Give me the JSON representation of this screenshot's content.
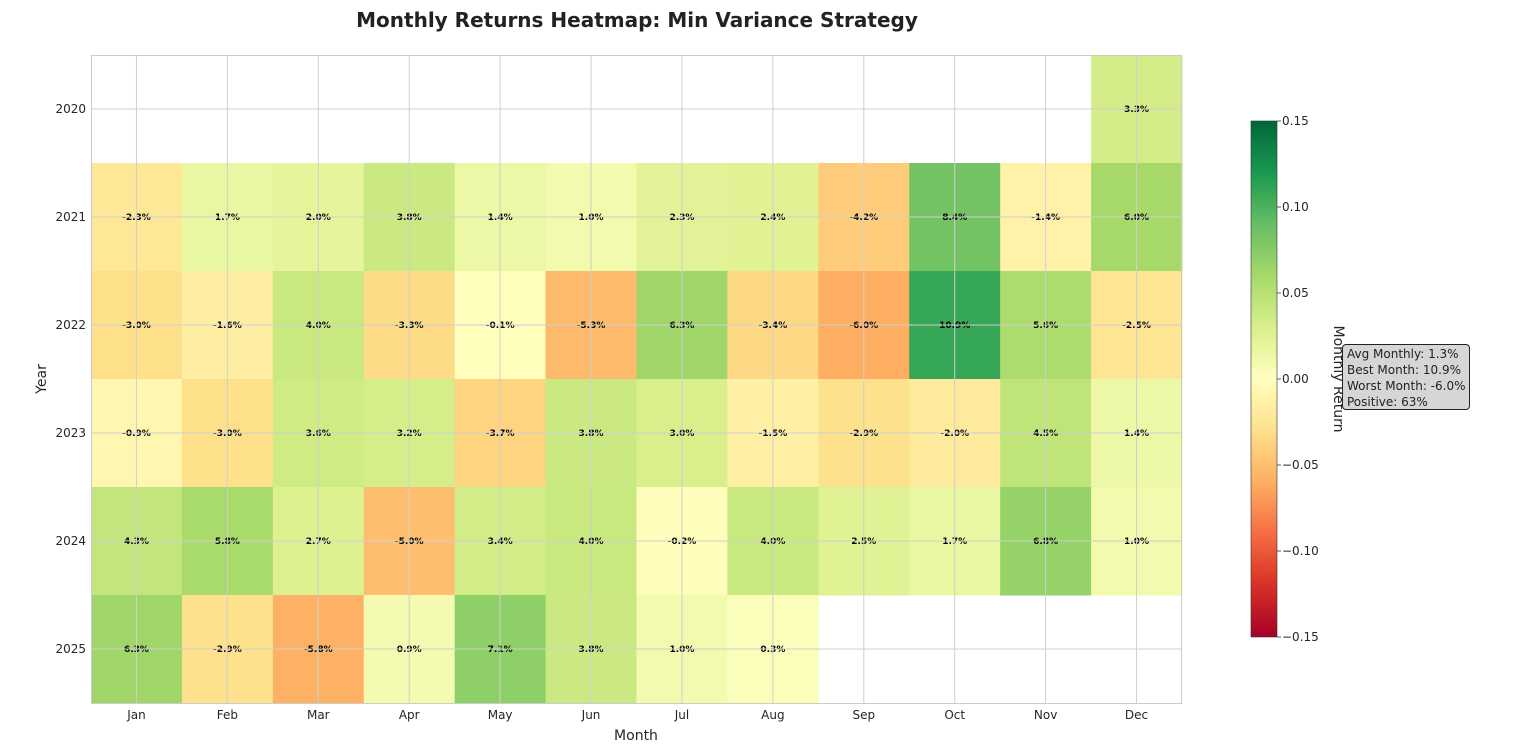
{
  "chart_data": {
    "type": "heatmap",
    "title": "Monthly Returns Heatmap: Min Variance Strategy",
    "xlabel": "Month",
    "ylabel": "Year",
    "x_categories": [
      "Jan",
      "Feb",
      "Mar",
      "Apr",
      "May",
      "Jun",
      "Jul",
      "Aug",
      "Sep",
      "Oct",
      "Nov",
      "Dec"
    ],
    "y_categories": [
      "2020",
      "2021",
      "2022",
      "2023",
      "2024",
      "2025"
    ],
    "values": [
      [
        null,
        null,
        null,
        null,
        null,
        null,
        null,
        null,
        null,
        null,
        null,
        0.033
      ],
      [
        -0.023,
        0.017,
        0.02,
        0.038,
        0.014,
        0.01,
        0.023,
        0.024,
        -0.042,
        0.084,
        -0.014,
        0.06
      ],
      [
        -0.03,
        -0.016,
        0.04,
        -0.033,
        -0.001,
        -0.053,
        0.063,
        -0.034,
        -0.06,
        0.109,
        0.056,
        -0.025
      ],
      [
        -0.009,
        -0.03,
        0.036,
        0.032,
        -0.037,
        0.038,
        0.03,
        -0.015,
        -0.029,
        -0.02,
        0.045,
        0.014
      ],
      [
        0.043,
        0.058,
        0.027,
        -0.05,
        0.034,
        0.04,
        -0.002,
        0.04,
        0.025,
        0.017,
        0.068,
        0.01
      ],
      [
        0.063,
        -0.029,
        -0.058,
        0.009,
        0.071,
        0.038,
        0.01,
        0.003,
        null,
        null,
        null,
        null
      ]
    ],
    "cell_labels": [
      [
        "",
        "",
        "",
        "",
        "",
        "",
        "",
        "",
        "",
        "",
        "",
        "3.3%"
      ],
      [
        "-2.3%",
        "1.7%",
        "2.0%",
        "3.8%",
        "1.4%",
        "1.0%",
        "2.3%",
        "2.4%",
        "-4.2%",
        "8.4%",
        "-1.4%",
        "6.0%"
      ],
      [
        "-3.0%",
        "-1.6%",
        "4.0%",
        "-3.3%",
        "-0.1%",
        "-5.3%",
        "6.3%",
        "-3.4%",
        "-6.0%",
        "10.9%",
        "5.6%",
        "-2.5%"
      ],
      [
        "-0.9%",
        "-3.0%",
        "3.6%",
        "3.2%",
        "-3.7%",
        "3.8%",
        "3.0%",
        "-1.5%",
        "-2.9%",
        "-2.0%",
        "4.5%",
        "1.4%"
      ],
      [
        "4.3%",
        "5.8%",
        "2.7%",
        "-5.0%",
        "3.4%",
        "4.0%",
        "-0.2%",
        "4.0%",
        "2.5%",
        "1.7%",
        "6.8%",
        "1.0%"
      ],
      [
        "6.3%",
        "-2.9%",
        "-5.8%",
        "0.9%",
        "7.1%",
        "3.8%",
        "1.0%",
        "0.3%",
        "",
        "",
        "",
        ""
      ]
    ],
    "colormap": "RdYlGn",
    "vmin": -0.15,
    "vmax": 0.15,
    "colorbar": {
      "label": "Monthly Return",
      "ticks": [
        "0.15",
        "0.10",
        "0.05",
        "0.00",
        "−0.05",
        "−0.10",
        "−0.15"
      ],
      "tick_values": [
        0.15,
        0.1,
        0.05,
        0.0,
        -0.05,
        -0.1,
        -0.15
      ]
    },
    "grid": true
  },
  "stats": {
    "avg_monthly": "Avg Monthly: 1.3%",
    "best_month": "Best Month: 10.9%",
    "worst_month": "Worst Month: -6.0%",
    "positive": "Positive: 63%"
  }
}
